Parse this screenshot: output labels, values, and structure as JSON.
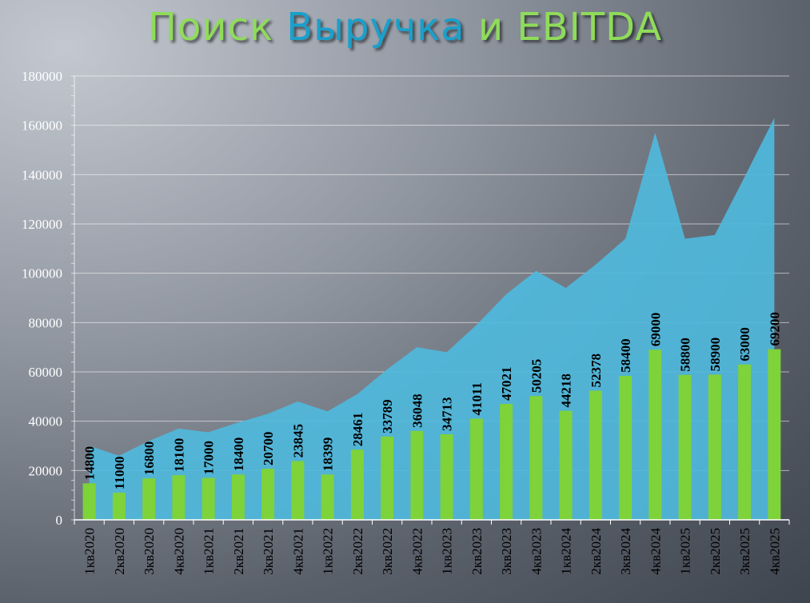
{
  "title": {
    "part1": "Поиск",
    "part2": "Выручка",
    "part3": "и EBITDA"
  },
  "colors": {
    "title_green": "#8fdc5a",
    "title_blue": "#1aa0cc",
    "area_fill": "#4fb8dc",
    "bar_fill": "#7ed23a"
  },
  "chart_data": {
    "type": "bar",
    "categories": [
      "1кв2020",
      "2кв2020",
      "3кв2020",
      "4кв2020",
      "1кв2021",
      "2кв2021",
      "3кв2021",
      "4кв2021",
      "1кв2022",
      "2кв2022",
      "3кв2022",
      "4кв2022",
      "1кв2023",
      "2кв2023",
      "3кв2023",
      "4кв2023",
      "1кв2024",
      "2кв2024",
      "3кв2024",
      "4кв2024",
      "1кв2025",
      "2кв2025",
      "3кв2025",
      "4кв2025"
    ],
    "series": [
      {
        "type": "area",
        "values": [
          30000,
          26000,
          32000,
          37000,
          35500,
          39500,
          43000,
          48000,
          44000,
          51000,
          61000,
          70000,
          68000,
          79000,
          91500,
          101000,
          94000,
          103500,
          114000,
          157000,
          114000,
          115500,
          139000,
          163000
        ]
      },
      {
        "type": "bar",
        "values": [
          14800,
          11000,
          16800,
          18100,
          17000,
          18400,
          20700,
          23845,
          18399,
          28461,
          33789,
          36048,
          34713,
          41011,
          47021,
          50205,
          44218,
          52378,
          58400,
          69000,
          58800,
          58900,
          63000,
          69200
        ],
        "data_labels": [
          "14800",
          "11000",
          "16800",
          "18100",
          "17000",
          "18400",
          "20700",
          "23845",
          "18399",
          "28461",
          "33789",
          "36048",
          "34713",
          "41011",
          "47021",
          "50205",
          "44218",
          "52378",
          "58400",
          "69000",
          "58800",
          "58900",
          "63000",
          "69200"
        ]
      }
    ],
    "ylim": [
      0,
      180000
    ],
    "yticks": [
      0,
      20000,
      40000,
      60000,
      80000,
      100000,
      120000,
      140000,
      160000,
      180000
    ],
    "ytick_labels": [
      "0",
      "20000",
      "40000",
      "60000",
      "80000",
      "100000",
      "120000",
      "140000",
      "160000",
      "180000"
    ],
    "grid": true,
    "legend": "none"
  }
}
